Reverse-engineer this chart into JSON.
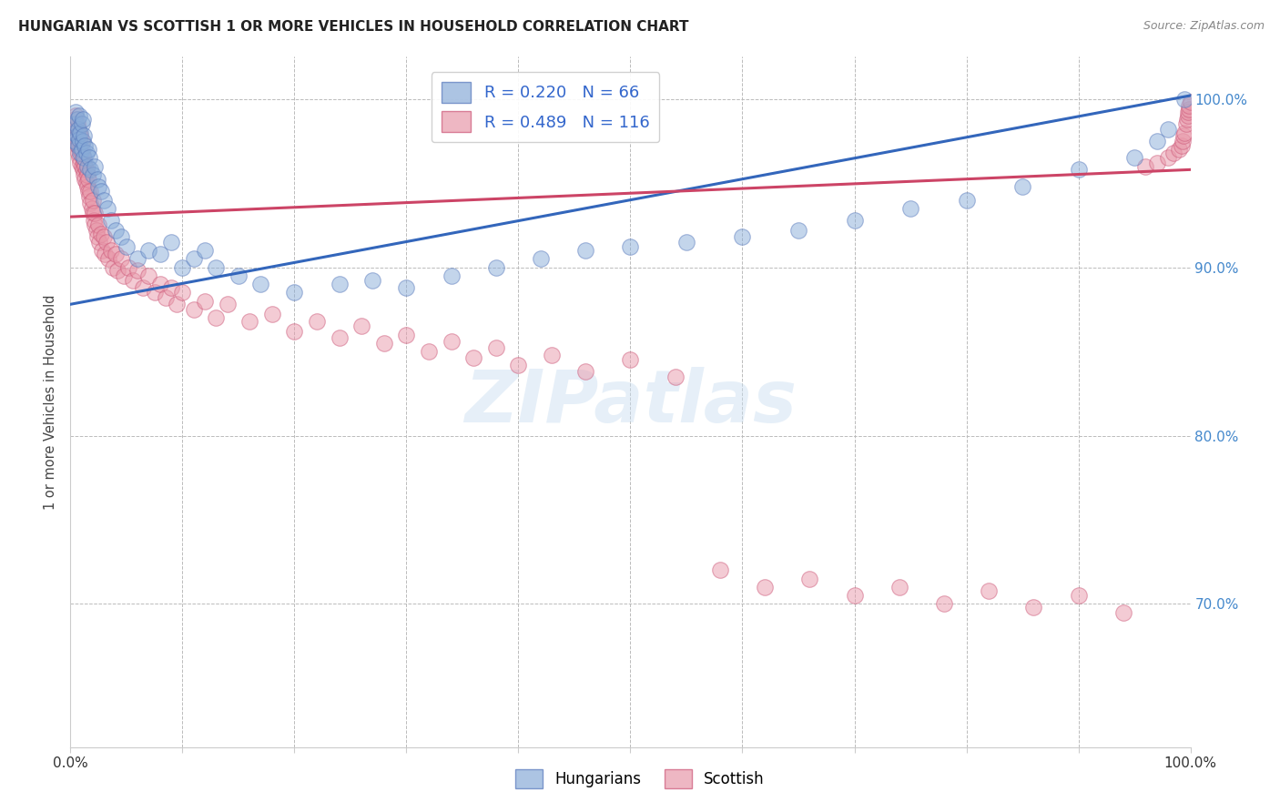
{
  "title": "HUNGARIAN VS SCOTTISH 1 OR MORE VEHICLES IN HOUSEHOLD CORRELATION CHART",
  "source": "Source: ZipAtlas.com",
  "ylabel": "1 or more Vehicles in Household",
  "xlim": [
    0.0,
    1.0
  ],
  "ylim": [
    0.615,
    1.025
  ],
  "ytick_positions": [
    0.7,
    0.8,
    0.9,
    1.0
  ],
  "ytick_labels": [
    "70.0%",
    "80.0%",
    "90.0%",
    "100.0%"
  ],
  "hungarian_color": "#89acd8",
  "scottish_color": "#e899aa",
  "hungarian_edge": "#5577bb",
  "scottish_edge": "#cc5577",
  "blue_line_color": "#3366bb",
  "pink_line_color": "#cc4466",
  "background_color": "#ffffff",
  "grid_color": "#bbbbbb",
  "watermark_text": "ZIPatlas",
  "blue_line_x0": 0.0,
  "blue_line_y0": 0.878,
  "blue_line_x1": 1.0,
  "blue_line_y1": 1.002,
  "pink_line_x0": 0.0,
  "pink_line_y0": 0.934,
  "pink_line_x1": 0.3,
  "pink_line_y1": 0.958,
  "hungarian_x": [
    0.003,
    0.004,
    0.005,
    0.005,
    0.006,
    0.006,
    0.007,
    0.007,
    0.008,
    0.008,
    0.009,
    0.009,
    0.01,
    0.01,
    0.011,
    0.011,
    0.012,
    0.012,
    0.013,
    0.014,
    0.015,
    0.016,
    0.017,
    0.018,
    0.02,
    0.022,
    0.024,
    0.025,
    0.027,
    0.03,
    0.033,
    0.036,
    0.04,
    0.045,
    0.05,
    0.06,
    0.07,
    0.08,
    0.09,
    0.1,
    0.11,
    0.12,
    0.13,
    0.15,
    0.17,
    0.2,
    0.24,
    0.27,
    0.3,
    0.34,
    0.38,
    0.42,
    0.46,
    0.5,
    0.55,
    0.6,
    0.65,
    0.7,
    0.75,
    0.8,
    0.85,
    0.9,
    0.95,
    0.97,
    0.98,
    0.995
  ],
  "hungarian_y": [
    0.98,
    0.975,
    0.985,
    0.992,
    0.978,
    0.988,
    0.972,
    0.982,
    0.976,
    0.99,
    0.968,
    0.98,
    0.97,
    0.985,
    0.975,
    0.988,
    0.965,
    0.978,
    0.972,
    0.968,
    0.96,
    0.97,
    0.965,
    0.958,
    0.955,
    0.96,
    0.952,
    0.948,
    0.945,
    0.94,
    0.935,
    0.928,
    0.922,
    0.918,
    0.912,
    0.905,
    0.91,
    0.908,
    0.915,
    0.9,
    0.905,
    0.91,
    0.9,
    0.895,
    0.89,
    0.885,
    0.89,
    0.892,
    0.888,
    0.895,
    0.9,
    0.905,
    0.91,
    0.912,
    0.915,
    0.918,
    0.922,
    0.928,
    0.935,
    0.94,
    0.948,
    0.958,
    0.965,
    0.975,
    0.982,
    1.0
  ],
  "scottish_x": [
    0.003,
    0.004,
    0.004,
    0.005,
    0.005,
    0.005,
    0.006,
    0.006,
    0.006,
    0.007,
    0.007,
    0.007,
    0.008,
    0.008,
    0.008,
    0.009,
    0.009,
    0.009,
    0.01,
    0.01,
    0.01,
    0.011,
    0.011,
    0.012,
    0.012,
    0.013,
    0.013,
    0.014,
    0.014,
    0.015,
    0.015,
    0.016,
    0.016,
    0.017,
    0.018,
    0.018,
    0.019,
    0.02,
    0.02,
    0.021,
    0.022,
    0.022,
    0.023,
    0.024,
    0.025,
    0.026,
    0.027,
    0.028,
    0.03,
    0.031,
    0.032,
    0.034,
    0.036,
    0.038,
    0.04,
    0.042,
    0.045,
    0.048,
    0.052,
    0.056,
    0.06,
    0.065,
    0.07,
    0.075,
    0.08,
    0.085,
    0.09,
    0.095,
    0.1,
    0.11,
    0.12,
    0.13,
    0.14,
    0.16,
    0.18,
    0.2,
    0.22,
    0.24,
    0.26,
    0.28,
    0.3,
    0.32,
    0.34,
    0.36,
    0.38,
    0.4,
    0.43,
    0.46,
    0.5,
    0.54,
    0.58,
    0.62,
    0.66,
    0.7,
    0.74,
    0.78,
    0.82,
    0.86,
    0.9,
    0.94,
    0.96,
    0.97,
    0.98,
    0.985,
    0.99,
    0.992,
    0.993,
    0.994,
    0.995,
    0.996,
    0.997,
    0.998,
    0.998,
    0.999,
    0.999,
    1.0
  ],
  "scottish_y": [
    0.98,
    0.985,
    0.988,
    0.975,
    0.98,
    0.99,
    0.972,
    0.978,
    0.985,
    0.968,
    0.975,
    0.982,
    0.965,
    0.972,
    0.98,
    0.962,
    0.97,
    0.978,
    0.96,
    0.968,
    0.975,
    0.958,
    0.965,
    0.955,
    0.962,
    0.952,
    0.96,
    0.95,
    0.958,
    0.948,
    0.955,
    0.945,
    0.952,
    0.942,
    0.938,
    0.945,
    0.935,
    0.932,
    0.94,
    0.928,
    0.925,
    0.932,
    0.922,
    0.918,
    0.925,
    0.915,
    0.92,
    0.91,
    0.918,
    0.908,
    0.915,
    0.905,
    0.91,
    0.9,
    0.908,
    0.898,
    0.905,
    0.895,
    0.9,
    0.892,
    0.898,
    0.888,
    0.895,
    0.885,
    0.89,
    0.882,
    0.888,
    0.878,
    0.885,
    0.875,
    0.88,
    0.87,
    0.878,
    0.868,
    0.872,
    0.862,
    0.868,
    0.858,
    0.865,
    0.855,
    0.86,
    0.85,
    0.856,
    0.846,
    0.852,
    0.842,
    0.848,
    0.838,
    0.845,
    0.835,
    0.72,
    0.71,
    0.715,
    0.705,
    0.71,
    0.7,
    0.708,
    0.698,
    0.705,
    0.695,
    0.96,
    0.962,
    0.965,
    0.968,
    0.97,
    0.972,
    0.975,
    0.978,
    0.98,
    0.985,
    0.988,
    0.99,
    0.992,
    0.994,
    0.996,
    0.998
  ]
}
